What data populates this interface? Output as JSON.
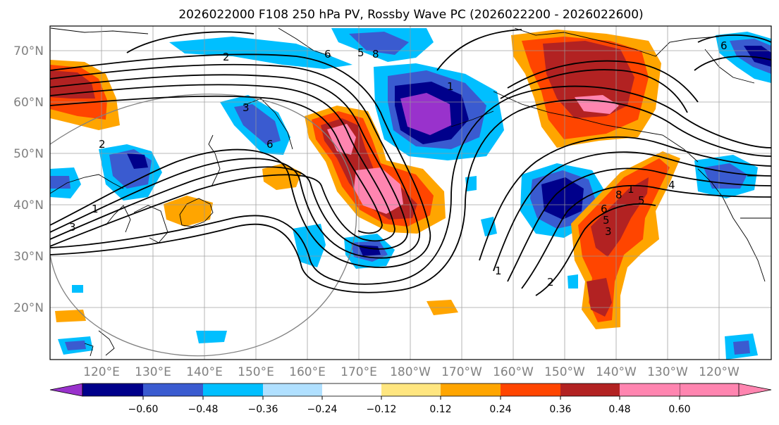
{
  "title": "2026022000 F108 250 hPa PV, Rossby Wave PC (2026022200 - 2026022600)",
  "lat_labels": [
    "70°N",
    "60°N",
    "50°N",
    "40°N",
    "30°N",
    "20°N"
  ],
  "lon_labels": [
    "120°E",
    "130°E",
    "140°E",
    "150°E",
    "160°E",
    "170°E",
    "180°W",
    "170°W",
    "160°W",
    "150°W",
    "140°W",
    "130°W",
    "120°W"
  ],
  "colorbar": {
    "colors": [
      "#9932cc",
      "#00008b",
      "#3a5bd0",
      "#00bfff",
      "#b0e0ff",
      "#ffffff",
      "#ffe680",
      "#ffa500",
      "#ff4500",
      "#b22222",
      "#ff85b0"
    ],
    "tick_labels": [
      "−0.60",
      "−0.48",
      "−0.36",
      "−0.24",
      "−0.12",
      "0.12",
      "0.24",
      "0.36",
      "0.48",
      "0.60"
    ]
  },
  "contour_labels": [
    "2",
    "6",
    "5",
    "8",
    "1",
    "3",
    "6",
    "1",
    "3",
    "2",
    "2",
    "1",
    "3",
    "5",
    "6",
    "8",
    "1",
    "5",
    "4",
    "6"
  ]
}
